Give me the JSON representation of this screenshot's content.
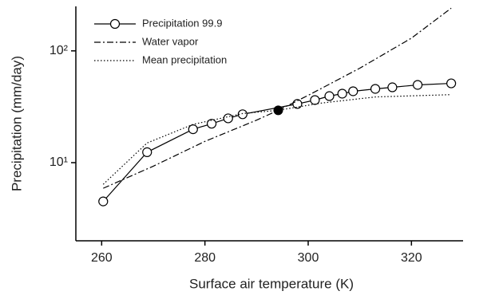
{
  "chart_data": {
    "type": "line",
    "xlabel": "Surface air temperature (K)",
    "ylabel": "Precipitation (mm/day)",
    "xlim": [
      255,
      330
    ],
    "xticks": [
      260,
      280,
      300,
      320
    ],
    "ylim": [
      2,
      250
    ],
    "yticks": [
      {
        "value": 10,
        "label": "10¹"
      },
      {
        "value": 100,
        "label": "10²"
      }
    ],
    "log_y": true,
    "legend": "upper left",
    "series": [
      {
        "name": "Precipitation 99.9",
        "color": "#000000",
        "style": "solid",
        "marker": "circle",
        "x": [
          260.3,
          268.8,
          277.7,
          281.3,
          284.5,
          287.3,
          297.9,
          301.3,
          304.1,
          306.6,
          308.7,
          313.0,
          316.3,
          321.2,
          327.7
        ],
        "values": [
          4.5,
          12.4,
          19.9,
          22.3,
          24.9,
          27.1,
          33.5,
          36.3,
          39.4,
          41.4,
          43.5,
          45.7,
          47.2,
          49.6,
          51.2
        ]
      },
      {
        "name": "Water vapor",
        "color": "#000000",
        "style": "dashdot",
        "x": [
          260.3,
          270,
          280,
          290,
          294.2,
          300,
          310,
          320,
          327.7
        ],
        "values": [
          5.9,
          9.3,
          15.5,
          24,
          29.4,
          40,
          70,
          130,
          241
        ]
      },
      {
        "name": "Mean precipitation",
        "color": "#000000",
        "style": "dotted",
        "x": [
          260.3,
          268.8,
          277.7,
          287.3,
          294.2,
          302.3,
          313.0,
          327.7
        ],
        "values": [
          6.4,
          15,
          22,
          27.5,
          29.4,
          34,
          38.7,
          40.6
        ]
      }
    ],
    "reference_point": {
      "x": 294.2,
      "y": 29.4,
      "color": "#000000"
    }
  }
}
